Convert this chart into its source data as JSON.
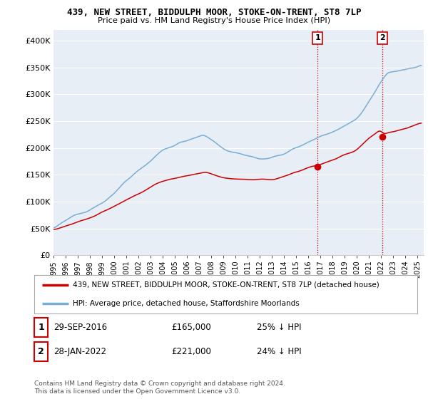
{
  "title": "439, NEW STREET, BIDDULPH MOOR, STOKE-ON-TRENT, ST8 7LP",
  "subtitle": "Price paid vs. HM Land Registry's House Price Index (HPI)",
  "ylabel_ticks": [
    "£0",
    "£50K",
    "£100K",
    "£150K",
    "£200K",
    "£250K",
    "£300K",
    "£350K",
    "£400K"
  ],
  "ylim": [
    0,
    420000
  ],
  "xlim_start": 1995.0,
  "xlim_end": 2025.5,
  "hpi_color": "#7aadd4",
  "price_color": "#cc0000",
  "vline_color": "#cc0000",
  "transaction1_x": 2016.75,
  "transaction1_y": 165000,
  "transaction2_x": 2022.08,
  "transaction2_y": 221000,
  "legend_entries": [
    "439, NEW STREET, BIDDULPH MOOR, STOKE-ON-TRENT, ST8 7LP (detached house)",
    "HPI: Average price, detached house, Staffordshire Moorlands"
  ],
  "table_rows": [
    [
      "1",
      "29-SEP-2016",
      "£165,000",
      "25% ↓ HPI"
    ],
    [
      "2",
      "28-JAN-2022",
      "£221,000",
      "24% ↓ HPI"
    ]
  ],
  "footer": "Contains HM Land Registry data © Crown copyright and database right 2024.\nThis data is licensed under the Open Government Licence v3.0.",
  "background_color": "#ffffff",
  "plot_bg_color": "#e8eef5"
}
